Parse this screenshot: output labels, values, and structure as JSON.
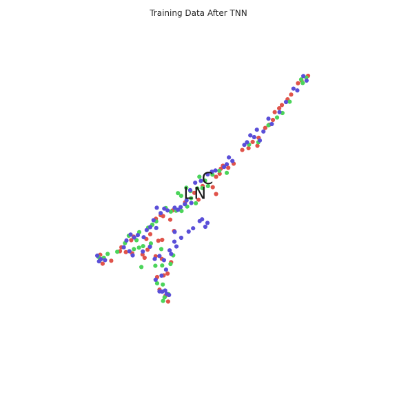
{
  "chart_data": {
    "type": "scatter",
    "title": "Training Data After TNN",
    "xlabel": "",
    "ylabel": "",
    "axes_visible": false,
    "grid": false,
    "xlim": [
      0,
      100
    ],
    "ylim": [
      0,
      100
    ],
    "colors": {
      "red": "#e0534a",
      "green": "#4bd45a",
      "blue": "#5a4fd8"
    },
    "cluster_labels": [
      {
        "text": "C",
        "x": 53.0,
        "y": 56.5
      },
      {
        "text": "L",
        "x": 46.5,
        "y": 51.5
      },
      {
        "text": "N",
        "x": 50.5,
        "y": 51.5
      }
    ],
    "series": [
      {
        "color_key": "red",
        "points": [
          [
            83.4,
            88.7
          ],
          [
            84.6,
            89.6
          ],
          [
            86.8,
            91.2
          ],
          [
            79.9,
            83.3
          ],
          [
            81.1,
            84.9
          ],
          [
            77.1,
            80.3
          ],
          [
            78.0,
            81.4
          ],
          [
            75.6,
            79.0
          ],
          [
            73.8,
            74.8
          ],
          [
            75.0,
            76.4
          ],
          [
            72.4,
            73.7
          ],
          [
            70.2,
            70.4
          ],
          [
            68.2,
            69.0
          ],
          [
            66.8,
            66.9
          ],
          [
            69.8,
            67.7
          ],
          [
            64.7,
            66.3
          ],
          [
            61.8,
            61.7
          ],
          [
            60.0,
            60.3
          ],
          [
            58.2,
            61.0
          ],
          [
            57.5,
            60.0
          ],
          [
            57.1,
            58.3
          ],
          [
            55.9,
            57.3
          ],
          [
            54.8,
            53.8
          ],
          [
            55.9,
            51.5
          ],
          [
            51.4,
            54.2
          ],
          [
            48.6,
            51.9
          ],
          [
            50.0,
            49.6
          ],
          [
            45.5,
            48.7
          ],
          [
            42.1,
            46.4
          ],
          [
            41.3,
            46.0
          ],
          [
            38.1,
            44.1
          ],
          [
            37.3,
            44.4
          ],
          [
            35.7,
            43.2
          ],
          [
            40.5,
            42.9
          ],
          [
            41.8,
            39.1
          ],
          [
            33.8,
            38.0
          ],
          [
            32.5,
            36.4
          ],
          [
            37.8,
            36.1
          ],
          [
            36.5,
            35.8
          ],
          [
            27.4,
            36.0
          ],
          [
            28.2,
            37.2
          ],
          [
            23.6,
            32.3
          ],
          [
            24.1,
            33.6
          ],
          [
            25.6,
            32.0
          ],
          [
            27.7,
            31.6
          ],
          [
            31.2,
            31.2
          ],
          [
            31.9,
            30.1
          ],
          [
            32.9,
            32.8
          ],
          [
            35.6,
            30.6
          ],
          [
            37.7,
            29.7
          ],
          [
            40.8,
            28.6
          ],
          [
            17.0,
            31.1
          ],
          [
            20.7,
            29.1
          ],
          [
            39.6,
            24.8
          ],
          [
            38.3,
            24.2
          ],
          [
            36.1,
            23.6
          ],
          [
            36.9,
            19.4
          ],
          [
            38.9,
            17.3
          ],
          [
            39.8,
            15.4
          ],
          [
            17.8,
            28.1
          ]
        ]
      },
      {
        "color_key": "green",
        "points": [
          [
            86.2,
            90.6
          ],
          [
            84.5,
            90.0
          ],
          [
            85.0,
            88.8
          ],
          [
            80.6,
            82.5
          ],
          [
            78.2,
            78.7
          ],
          [
            76.4,
            77.2
          ],
          [
            73.5,
            74.6
          ],
          [
            70.1,
            68.9
          ],
          [
            67.0,
            68.1
          ],
          [
            59.5,
            58.6
          ],
          [
            57.0,
            59.3
          ],
          [
            54.7,
            58.0
          ],
          [
            52.2,
            56.0
          ],
          [
            50.3,
            57.3
          ],
          [
            53.2,
            54.2
          ],
          [
            51.3,
            53.5
          ],
          [
            49.6,
            53.4
          ],
          [
            47.3,
            52.5
          ],
          [
            45.9,
            53.6
          ],
          [
            43.1,
            51.8
          ],
          [
            44.2,
            50.9
          ],
          [
            47.5,
            50.1
          ],
          [
            49.1,
            48.4
          ],
          [
            46.2,
            47.3
          ],
          [
            44.3,
            45.8
          ],
          [
            40.7,
            45.6
          ],
          [
            39.0,
            46.8
          ],
          [
            42.5,
            45.9
          ],
          [
            35.8,
            42.3
          ],
          [
            34.5,
            41.2
          ],
          [
            33.1,
            40.2
          ],
          [
            30.1,
            38.7
          ],
          [
            26.6,
            37.5
          ],
          [
            25.3,
            35.0
          ],
          [
            29.2,
            36.0
          ],
          [
            34.0,
            34.9
          ],
          [
            37.5,
            33.0
          ],
          [
            31.4,
            34.0
          ],
          [
            30.0,
            33.5
          ],
          [
            28.3,
            33.0
          ],
          [
            22.7,
            32.1
          ],
          [
            19.5,
            31.4
          ],
          [
            16.4,
            30.4
          ],
          [
            16.8,
            29.2
          ],
          [
            18.2,
            30.1
          ],
          [
            41.5,
            30.9
          ],
          [
            40.6,
            28.0
          ],
          [
            37.8,
            27.5
          ],
          [
            35.5,
            27.4
          ],
          [
            30.8,
            27.0
          ],
          [
            36.1,
            21.5
          ],
          [
            38.0,
            21.1
          ],
          [
            39.9,
            17.9
          ],
          [
            38.6,
            16.8
          ],
          [
            38.1,
            15.6
          ]
        ]
      },
      {
        "color_key": "blue",
        "points": [
          [
            86.3,
            89.6
          ],
          [
            85.2,
            91.1
          ],
          [
            83.2,
            86.3
          ],
          [
            81.9,
            86.9
          ],
          [
            79.4,
            82.4
          ],
          [
            77.2,
            79.0
          ],
          [
            73.5,
            76.8
          ],
          [
            74.6,
            75.0
          ],
          [
            69.6,
            73.1
          ],
          [
            71.8,
            72.5
          ],
          [
            67.4,
            71.2
          ],
          [
            68.7,
            70.6
          ],
          [
            70.6,
            69.5
          ],
          [
            66.3,
            68.9
          ],
          [
            65.4,
            68.0
          ],
          [
            60.2,
            63.8
          ],
          [
            61.4,
            62.6
          ],
          [
            59.5,
            61.5
          ],
          [
            58.6,
            60.6
          ],
          [
            55.7,
            59.4
          ],
          [
            54.5,
            59.0
          ],
          [
            53.1,
            58.1
          ],
          [
            48.9,
            55.3
          ],
          [
            50.8,
            55.9
          ],
          [
            47.2,
            52.8
          ],
          [
            46.0,
            49.4
          ],
          [
            47.6,
            48.5
          ],
          [
            45.4,
            48.1
          ],
          [
            44.0,
            47.1
          ],
          [
            43.1,
            46.2
          ],
          [
            42.0,
            46.9
          ],
          [
            39.6,
            46.0
          ],
          [
            38.5,
            46.6
          ],
          [
            37.3,
            45.1
          ],
          [
            36.0,
            46.9
          ],
          [
            34.9,
            42.7
          ],
          [
            35.8,
            40.1
          ],
          [
            33.8,
            40.4
          ],
          [
            32.6,
            39.4
          ],
          [
            29.6,
            37.7
          ],
          [
            28.4,
            36.9
          ],
          [
            27.2,
            37.9
          ],
          [
            31.6,
            37.0
          ],
          [
            25.8,
            35.9
          ],
          [
            24.9,
            33.6
          ],
          [
            26.8,
            32.3
          ],
          [
            27.9,
            30.9
          ],
          [
            31.3,
            32.2
          ],
          [
            33.7,
            33.8
          ],
          [
            35.3,
            29.7
          ],
          [
            36.9,
            30.7
          ],
          [
            38.4,
            29.3
          ],
          [
            40.3,
            32.6
          ],
          [
            41.9,
            35.5
          ],
          [
            42.6,
            33.9
          ],
          [
            40.8,
            31.4
          ],
          [
            39.1,
            26.1
          ],
          [
            37.6,
            24.1
          ],
          [
            35.6,
            22.7
          ],
          [
            36.9,
            18.8
          ],
          [
            37.8,
            18.7
          ],
          [
            38.8,
            19.1
          ],
          [
            39.3,
            18.0
          ],
          [
            40.1,
            17.6
          ],
          [
            16.0,
            30.8
          ],
          [
            16.6,
            28.9
          ],
          [
            17.2,
            29.6
          ],
          [
            18.6,
            29.3
          ],
          [
            42.0,
            38.8
          ],
          [
            44.2,
            36.8
          ],
          [
            46.7,
            38.9
          ],
          [
            48.2,
            40.0
          ],
          [
            50.4,
            42.4
          ],
          [
            51.2,
            43.0
          ],
          [
            52.3,
            40.5
          ],
          [
            53.0,
            41.8
          ]
        ]
      }
    ]
  }
}
